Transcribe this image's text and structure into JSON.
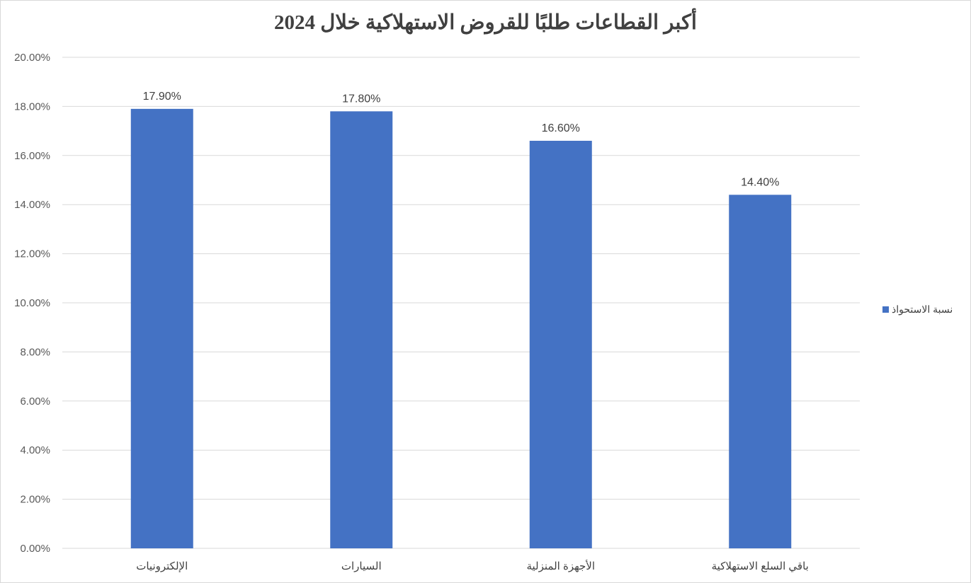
{
  "chart_data": {
    "type": "bar",
    "title": "أكبر القطاعات طلبًا للقروض الاستهلاكية خلال 2024",
    "categories": [
      "الإلكترونيات",
      "السيارات",
      "الأجهزة المنزلية",
      "باقي السلع الاستهلاكية"
    ],
    "series": [
      {
        "name": "نسبة الاستحواذ",
        "values": [
          17.9,
          17.8,
          16.6,
          14.4
        ],
        "labels": [
          "17.90%",
          "17.80%",
          "16.60%",
          "14.40%"
        ],
        "color": "#4472c4"
      }
    ],
    "ylim": [
      0,
      20
    ],
    "yticks": [
      0,
      2,
      4,
      6,
      8,
      10,
      12,
      14,
      16,
      18,
      20
    ],
    "ytick_labels": [
      "0.00%",
      "2.00%",
      "4.00%",
      "6.00%",
      "8.00%",
      "10.00%",
      "12.00%",
      "14.00%",
      "16.00%",
      "18.00%",
      "20.00%"
    ],
    "grid": true,
    "legend_position": "right"
  }
}
